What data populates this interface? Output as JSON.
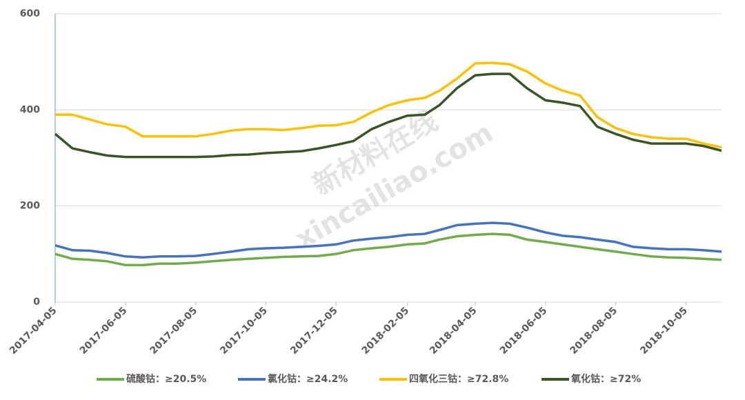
{
  "chart_data": {
    "type": "line",
    "watermark": [
      "新材料在线",
      "xincailiao.com"
    ],
    "x": [
      "2017-04-05",
      "2017-04-20",
      "2017-05-05",
      "2017-05-20",
      "2017-06-05",
      "2017-06-20",
      "2017-07-05",
      "2017-07-20",
      "2017-08-05",
      "2017-08-20",
      "2017-09-05",
      "2017-09-20",
      "2017-10-05",
      "2017-10-20",
      "2017-11-05",
      "2017-11-20",
      "2017-12-05",
      "2017-12-20",
      "2018-01-05",
      "2018-01-20",
      "2018-02-05",
      "2018-02-20",
      "2018-03-05",
      "2018-03-20",
      "2018-04-05",
      "2018-04-20",
      "2018-05-05",
      "2018-05-20",
      "2018-06-05",
      "2018-06-20",
      "2018-07-05",
      "2018-07-20",
      "2018-08-05",
      "2018-08-20",
      "2018-09-05",
      "2018-09-20",
      "2018-10-05",
      "2018-10-20",
      "2018-11-05"
    ],
    "series": [
      {
        "name": "硫酸钴：≥20.5%",
        "color": "#70ad47",
        "values": [
          100,
          90,
          88,
          85,
          77,
          77,
          80,
          80,
          82,
          85,
          88,
          90,
          92,
          94,
          95,
          96,
          100,
          108,
          112,
          115,
          120,
          122,
          130,
          137,
          140,
          142,
          140,
          130,
          125,
          120,
          115,
          110,
          105,
          100,
          95,
          93,
          92,
          90,
          88
        ]
      },
      {
        "name": "氯化钴：≥24.2%",
        "color": "#4472c4",
        "values": [
          118,
          108,
          107,
          102,
          95,
          93,
          95,
          95,
          96,
          100,
          105,
          110,
          112,
          113,
          115,
          117,
          120,
          128,
          132,
          135,
          140,
          142,
          150,
          160,
          163,
          165,
          163,
          155,
          145,
          138,
          135,
          130,
          125,
          115,
          112,
          110,
          110,
          108,
          105
        ]
      },
      {
        "name": "四氧化三钴：≥72.8%",
        "color": "#ffc000",
        "values": [
          390,
          390,
          380,
          370,
          365,
          345,
          345,
          345,
          345,
          350,
          357,
          360,
          360,
          358,
          362,
          367,
          368,
          375,
          395,
          410,
          420,
          425,
          440,
          465,
          497,
          498,
          495,
          480,
          455,
          440,
          430,
          385,
          362,
          350,
          343,
          340,
          340,
          330,
          322
        ]
      },
      {
        "name": "氧化钴：≥72%",
        "color": "#375623",
        "values": [
          350,
          320,
          312,
          305,
          302,
          302,
          302,
          302,
          302,
          303,
          306,
          307,
          310,
          312,
          314,
          320,
          327,
          335,
          360,
          375,
          388,
          390,
          410,
          445,
          472,
          475,
          475,
          445,
          420,
          415,
          408,
          365,
          350,
          338,
          330,
          330,
          330,
          325,
          315
        ]
      }
    ],
    "xlim": [
      "2017-04-05",
      "2018-11-05"
    ],
    "xticks": [
      "2017-04-05",
      "2017-06-05",
      "2017-08-05",
      "2017-10-05",
      "2017-12-05",
      "2018-02-05",
      "2018-04-05",
      "2018-06-05",
      "2018-08-05",
      "2018-10-05"
    ],
    "ylim": [
      0,
      600
    ],
    "yticks": [
      0,
      200,
      400,
      600
    ],
    "grid": true,
    "legend": "bottom"
  }
}
